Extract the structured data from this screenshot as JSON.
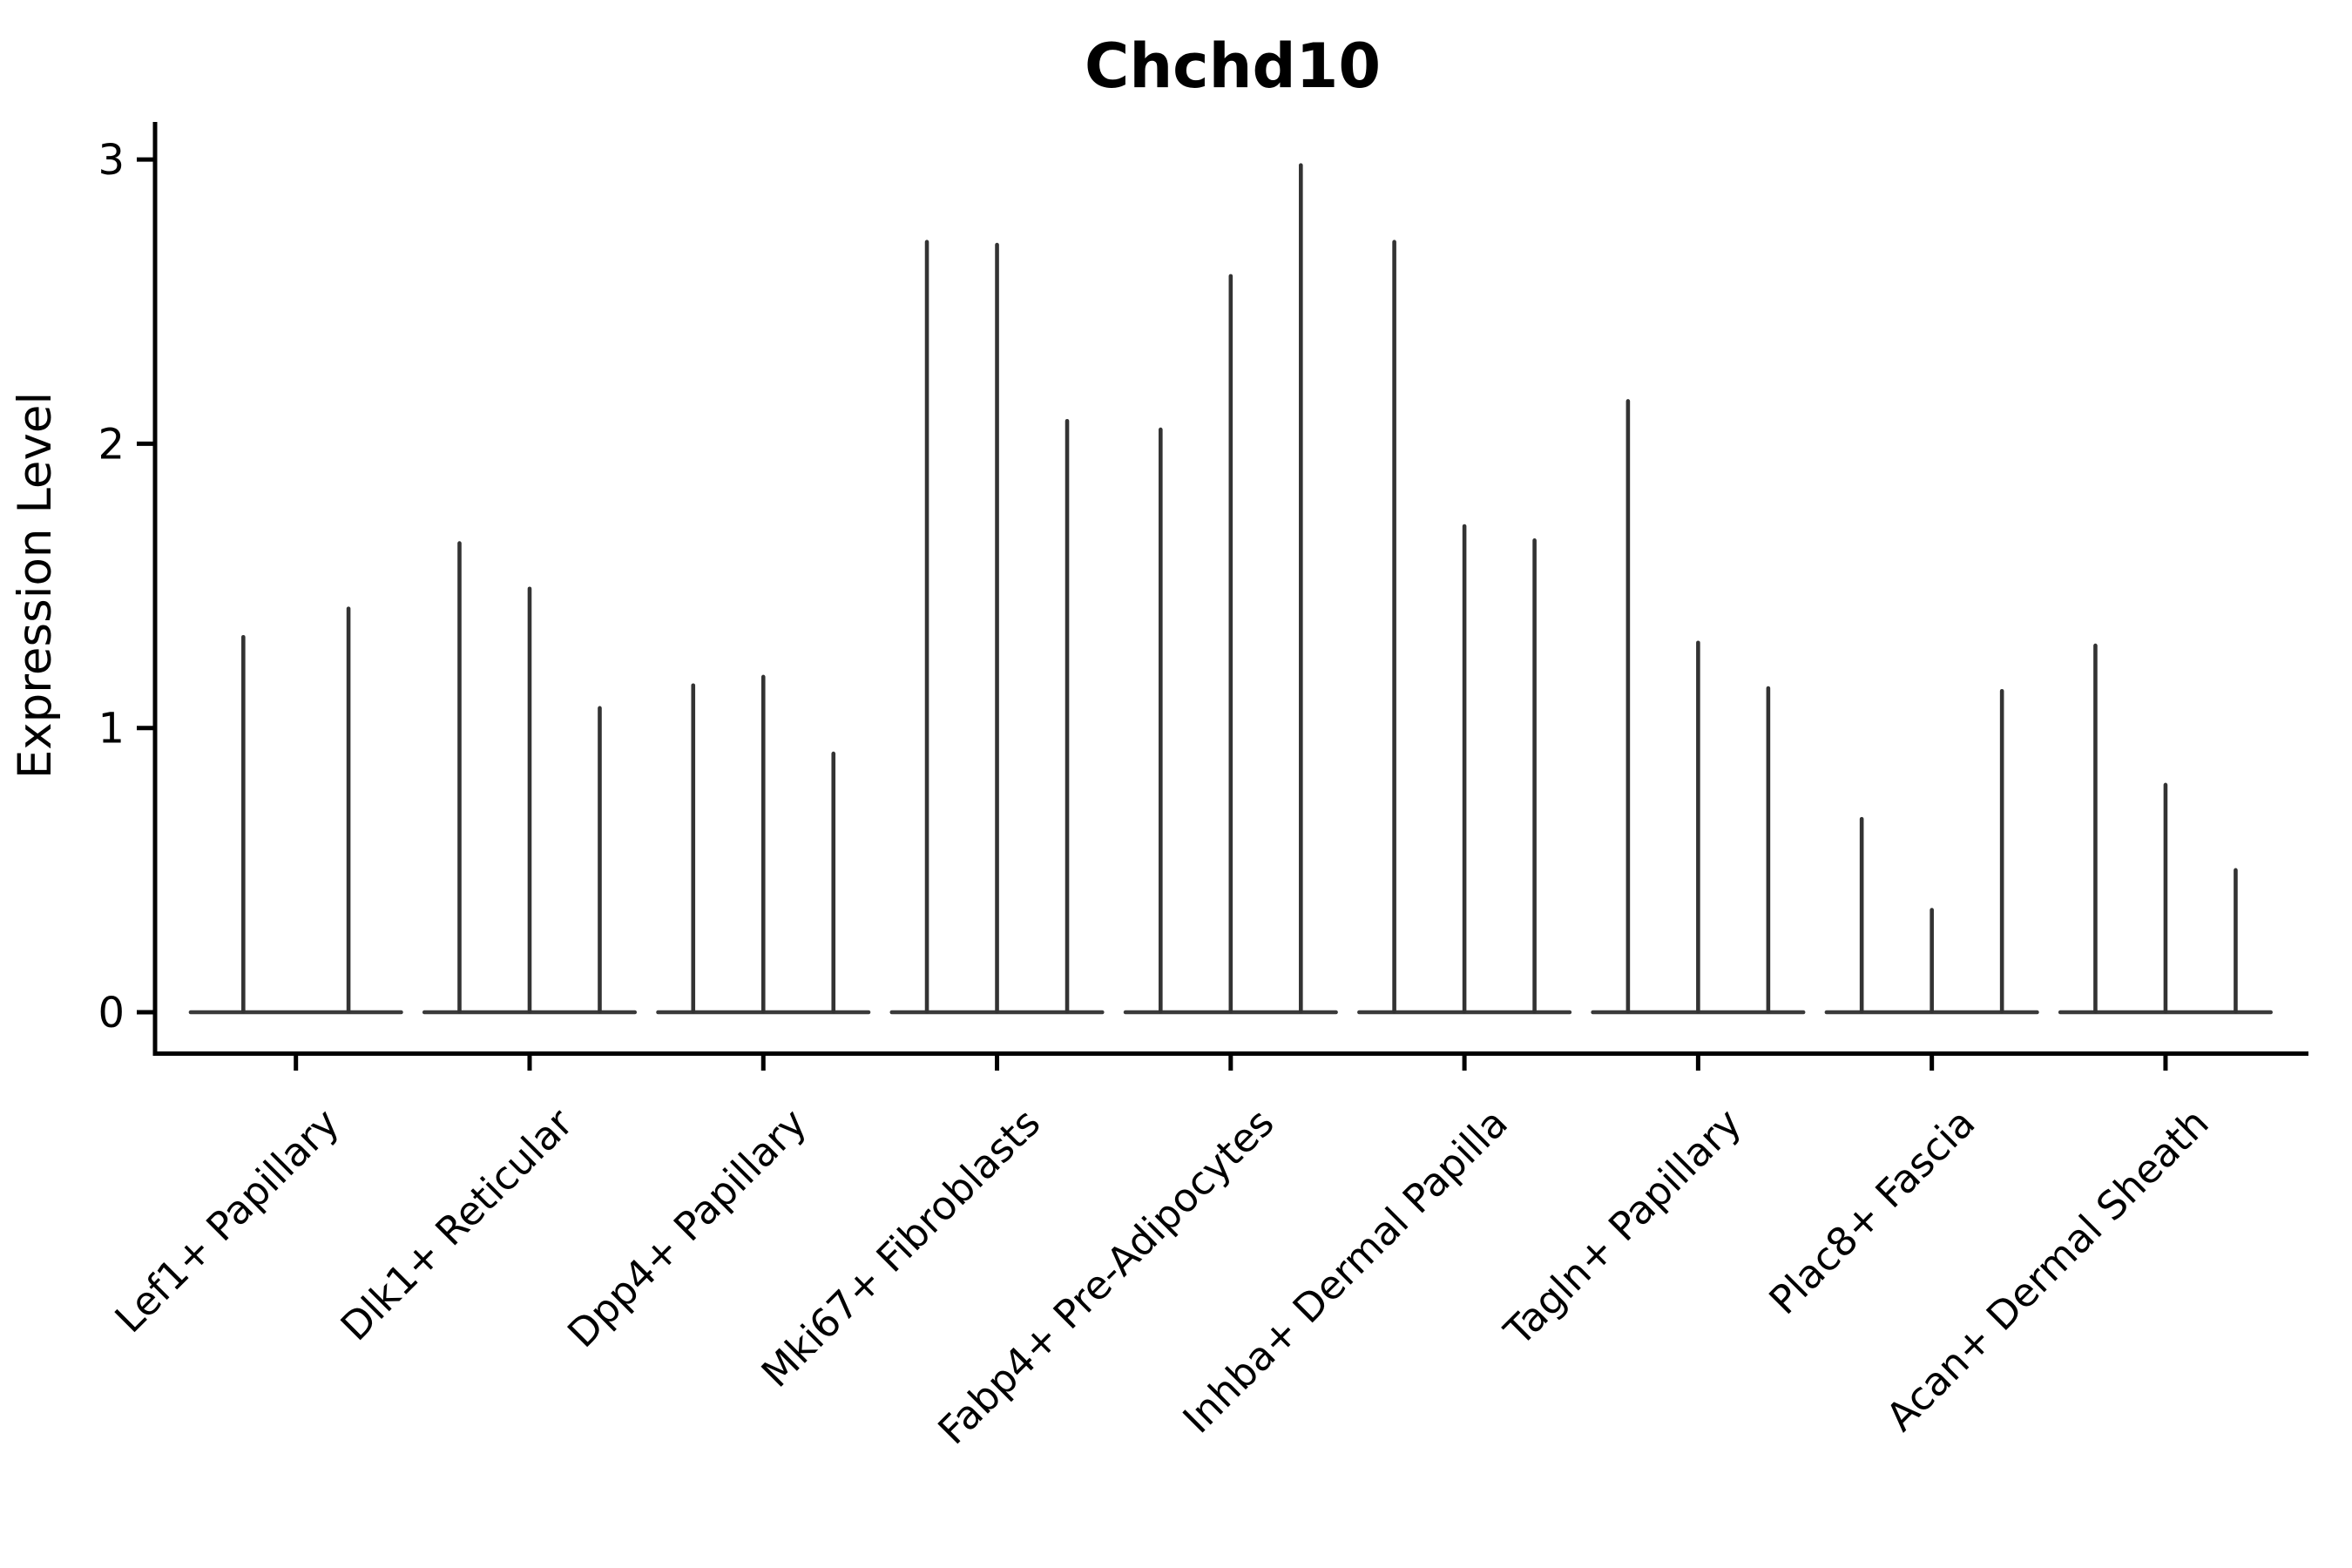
{
  "chart_data": {
    "type": "violin",
    "title": "Chchd10",
    "xlabel": "",
    "ylabel": "Expression Level",
    "ylim": [
      0,
      3.1
    ],
    "yticks": [
      0,
      1,
      2,
      3
    ],
    "ytick_labels": [
      "0",
      "1",
      "2",
      "3"
    ],
    "grid": "off",
    "legend": "none",
    "note": "Violin bodies are collapsed onto the zero baseline; each violin shows a flat base at 0 with a thin spike up to its maximum expression value.",
    "categories": [
      "Lef1+ Papillary",
      "Dlk1+ Reticular",
      "Dpp4+ Papillary",
      "Mki67+ Fibroblasts",
      "Fabp4+ Pre-Adipocytes",
      "Inhba+ Dermal Papilla",
      "Tagln+ Papillary",
      "Plac8+ Fascia",
      "Acan+ Dermal Sheath"
    ],
    "groups": [
      {
        "label": "Lef1+ Papillary",
        "spike_max_values": [
          1.32,
          1.42
        ]
      },
      {
        "label": "Dlk1+ Reticular",
        "spike_max_values": [
          1.65,
          1.49,
          1.07
        ]
      },
      {
        "label": "Dpp4+ Papillary",
        "spike_max_values": [
          1.15,
          1.18,
          0.91
        ]
      },
      {
        "label": "Mki67+ Fibroblasts",
        "spike_max_values": [
          2.71,
          2.7,
          2.08
        ]
      },
      {
        "label": "Fabp4+ Pre-Adipocytes",
        "spike_max_values": [
          2.05,
          2.59,
          2.98
        ]
      },
      {
        "label": "Inhba+ Dermal Papilla",
        "spike_max_values": [
          2.71,
          1.71,
          1.66
        ]
      },
      {
        "label": "Tagln+ Papillary",
        "spike_max_values": [
          2.15,
          1.3,
          1.14
        ]
      },
      {
        "label": "Plac8+ Fascia",
        "spike_max_values": [
          0.68,
          0.36,
          1.13
        ]
      },
      {
        "label": "Acan+ Dermal Sheath",
        "spike_max_values": [
          1.29,
          0.8,
          0.5
        ]
      }
    ],
    "colors": {
      "violin_stroke": "#333333",
      "base_bar": "#3a3a3a",
      "axis": "#000000",
      "background": "#ffffff"
    }
  }
}
